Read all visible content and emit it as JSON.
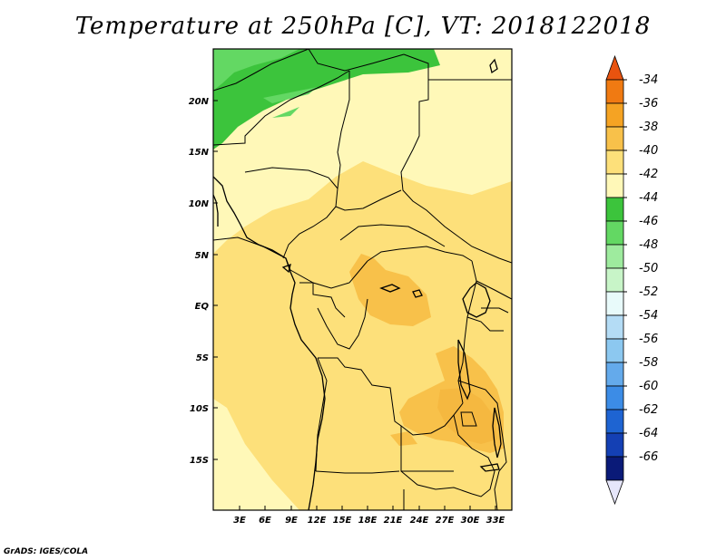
{
  "title": "Temperature at 250hPa [C], VT: 2018122018",
  "credit": "GrADS: IGES/COLA",
  "map": {
    "lat_labels": [
      "20N",
      "15N",
      "10N",
      "5N",
      "EQ",
      "5S",
      "10S",
      "15S"
    ],
    "lon_labels": [
      "3E",
      "6E",
      "9E",
      "12E",
      "15E",
      "18E",
      "21E",
      "24E",
      "27E",
      "30E",
      "33E"
    ]
  },
  "colorbar": {
    "labels": [
      "-34",
      "-36",
      "-38",
      "-40",
      "-42",
      "-44",
      "-46",
      "-48",
      "-50",
      "-52",
      "-54",
      "-56",
      "-58",
      "-60",
      "-62",
      "-64",
      "-66"
    ],
    "colors": [
      "#e8530f",
      "#f07a12",
      "#f5a323",
      "#f8c14a",
      "#fde07a",
      "#fff8b8",
      "#3cc43c",
      "#63d863",
      "#9eeb9e",
      "#c8f5c8",
      "#e8fafa",
      "#b4dcf5",
      "#8cc8f0",
      "#64aaeb",
      "#3c8ce6",
      "#1e64d2",
      "#1440b4",
      "#0a1a78",
      "#e6e6fa"
    ]
  }
}
